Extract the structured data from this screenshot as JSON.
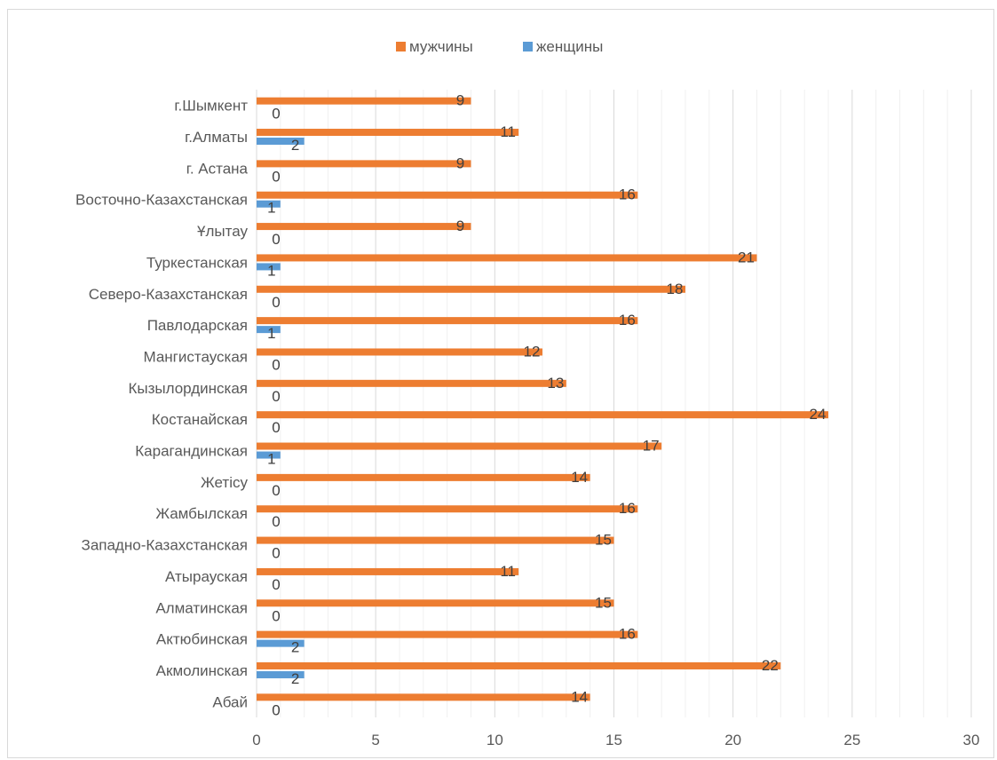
{
  "chart_data": {
    "type": "bar",
    "orientation": "horizontal",
    "categories": [
      "Абай",
      "Акмолинская",
      "Актюбинская ",
      "Алматинская",
      "Атырауская",
      "Западно-Казахстанская",
      "Жамбылская",
      "Жетісу",
      "Карагандинская",
      "Костанайская",
      "Кызылординская",
      "Мангистауская",
      "Павлодарская",
      "Северо-Казахстанская",
      "Туркестанская",
      "Ұлытау",
      "Восточно-Казахстанская",
      "г. Астана",
      "г.Алматы",
      "г.Шымкент"
    ],
    "series": [
      {
        "name": "мужчины",
        "color": "#ed7d31",
        "values": [
          14,
          22,
          16,
          15,
          11,
          15,
          16,
          14,
          17,
          24,
          13,
          12,
          16,
          18,
          21,
          9,
          16,
          9,
          11,
          9
        ]
      },
      {
        "name": "женщины",
        "color": "#5b9bd5",
        "values": [
          0,
          2,
          2,
          0,
          0,
          0,
          0,
          0,
          1,
          0,
          0,
          0,
          1,
          0,
          1,
          0,
          1,
          0,
          2,
          0
        ]
      }
    ],
    "xlim": [
      0,
      30
    ],
    "xticks": [
      0,
      5,
      10,
      15,
      20,
      25,
      30
    ],
    "minor_grid_step": 1,
    "grid": true,
    "legend_position": "top",
    "data_labels": true,
    "title": "",
    "xlabel": "",
    "ylabel": ""
  }
}
